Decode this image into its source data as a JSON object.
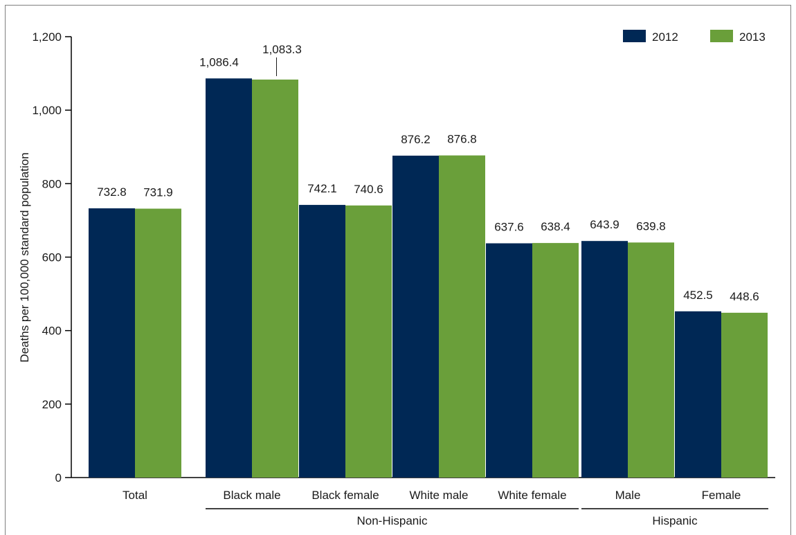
{
  "chart_data": {
    "type": "bar",
    "title": "",
    "xlabel": "",
    "ylabel": "Deaths per 100,000 standard population",
    "ylim": [
      0,
      1200
    ],
    "yticks": [
      0,
      200,
      400,
      600,
      800,
      1000,
      1200
    ],
    "ytick_labels": [
      "0",
      "200",
      "400",
      "600",
      "800",
      "1,000",
      "1,200"
    ],
    "grid": false,
    "legend_position": "top-right",
    "categories": [
      "Total",
      "Black male",
      "Black female",
      "White male",
      "White female",
      "Male",
      "Female"
    ],
    "groups": [
      {
        "label": "Non-Hispanic",
        "categories": [
          "Black male",
          "Black female",
          "White male",
          "White female"
        ]
      },
      {
        "label": "Hispanic",
        "categories": [
          "Male",
          "Female"
        ]
      }
    ],
    "series": [
      {
        "name": "2012",
        "color": "#002855",
        "values": [
          732.8,
          1086.4,
          742.1,
          876.2,
          637.6,
          643.9,
          452.5
        ],
        "labels": [
          "732.8",
          "1,086.4",
          "742.1",
          "876.2",
          "637.6",
          "643.9",
          "452.5"
        ]
      },
      {
        "name": "2013",
        "color": "#6a9f3a",
        "values": [
          731.9,
          1083.3,
          740.6,
          876.8,
          638.4,
          639.8,
          448.6
        ],
        "labels": [
          "731.9",
          "1,083.3",
          "740.6",
          "876.8",
          "638.4",
          "639.8",
          "448.6"
        ]
      }
    ]
  }
}
